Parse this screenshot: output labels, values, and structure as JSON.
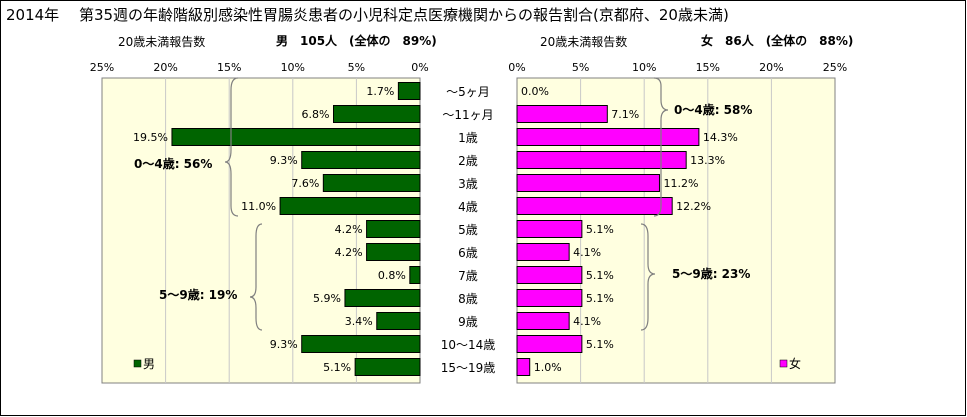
{
  "page": {
    "title": "2014年　 第35週の年齢階級別感染性胃腸炎患者の小児科定点医療機関からの報告割合(京都府、20歳未満)"
  },
  "left_panel": {
    "header_label": "20歳未満報告数",
    "header_summary": "男　105人　(全体の　89%)"
  },
  "right_panel": {
    "header_label": "20歳未満報告数",
    "header_summary": "女　86人　(全体の　88%)"
  },
  "group_labels": {
    "male_0_4": "0～4歳: 56%",
    "male_5_9": "5～9歳: 19%",
    "female_0_4": "0～4歳: 58%",
    "female_5_9": "5～9歳: 23%"
  },
  "colors": {
    "male": "#006400",
    "female": "#ff00ff",
    "plot_bg": "#ffffe0"
  },
  "chart_data": [
    {
      "type": "bar",
      "orientation": "horizontal",
      "direction": "right-to-left",
      "categories": [
        "～5ヶ月",
        "～11ヶ月",
        "1歳",
        "2歳",
        "3歳",
        "4歳",
        "5歳",
        "6歳",
        "7歳",
        "8歳",
        "9歳",
        "10～14歳",
        "15～19歳"
      ],
      "series": [
        {
          "name": "男",
          "values": [
            1.7,
            6.8,
            19.5,
            9.3,
            7.6,
            11.0,
            4.2,
            4.2,
            0.8,
            5.9,
            3.4,
            9.3,
            5.1
          ],
          "labels": [
            "1.7%",
            "6.8%",
            "19.5%",
            "9.3%",
            "7.6%",
            "11.0%",
            "4.2%",
            "4.2%",
            "0.8%",
            "5.9%",
            "3.4%",
            "9.3%",
            "5.1%"
          ]
        }
      ],
      "xlim": [
        0,
        25
      ],
      "ticks": [
        "25%",
        "20%",
        "15%",
        "10%",
        "5%",
        "0%"
      ],
      "legend_position": "bottom-left",
      "grid": true
    },
    {
      "type": "bar",
      "orientation": "horizontal",
      "direction": "left-to-right",
      "categories": [
        "～5ヶ月",
        "～11ヶ月",
        "1歳",
        "2歳",
        "3歳",
        "4歳",
        "5歳",
        "6歳",
        "7歳",
        "8歳",
        "9歳",
        "10～14歳",
        "15～19歳"
      ],
      "series": [
        {
          "name": "女",
          "values": [
            0.0,
            7.1,
            14.3,
            13.3,
            11.2,
            12.2,
            5.1,
            4.1,
            5.1,
            5.1,
            4.1,
            5.1,
            1.0
          ],
          "labels": [
            "0.0%",
            "7.1%",
            "14.3%",
            "13.3%",
            "11.2%",
            "12.2%",
            "5.1%",
            "4.1%",
            "5.1%",
            "5.1%",
            "4.1%",
            "5.1%",
            "1.0%"
          ]
        }
      ],
      "xlim": [
        0,
        25
      ],
      "ticks": [
        "0%",
        "5%",
        "10%",
        "15%",
        "20%",
        "25%"
      ],
      "legend_position": "bottom-right",
      "grid": true
    }
  ]
}
